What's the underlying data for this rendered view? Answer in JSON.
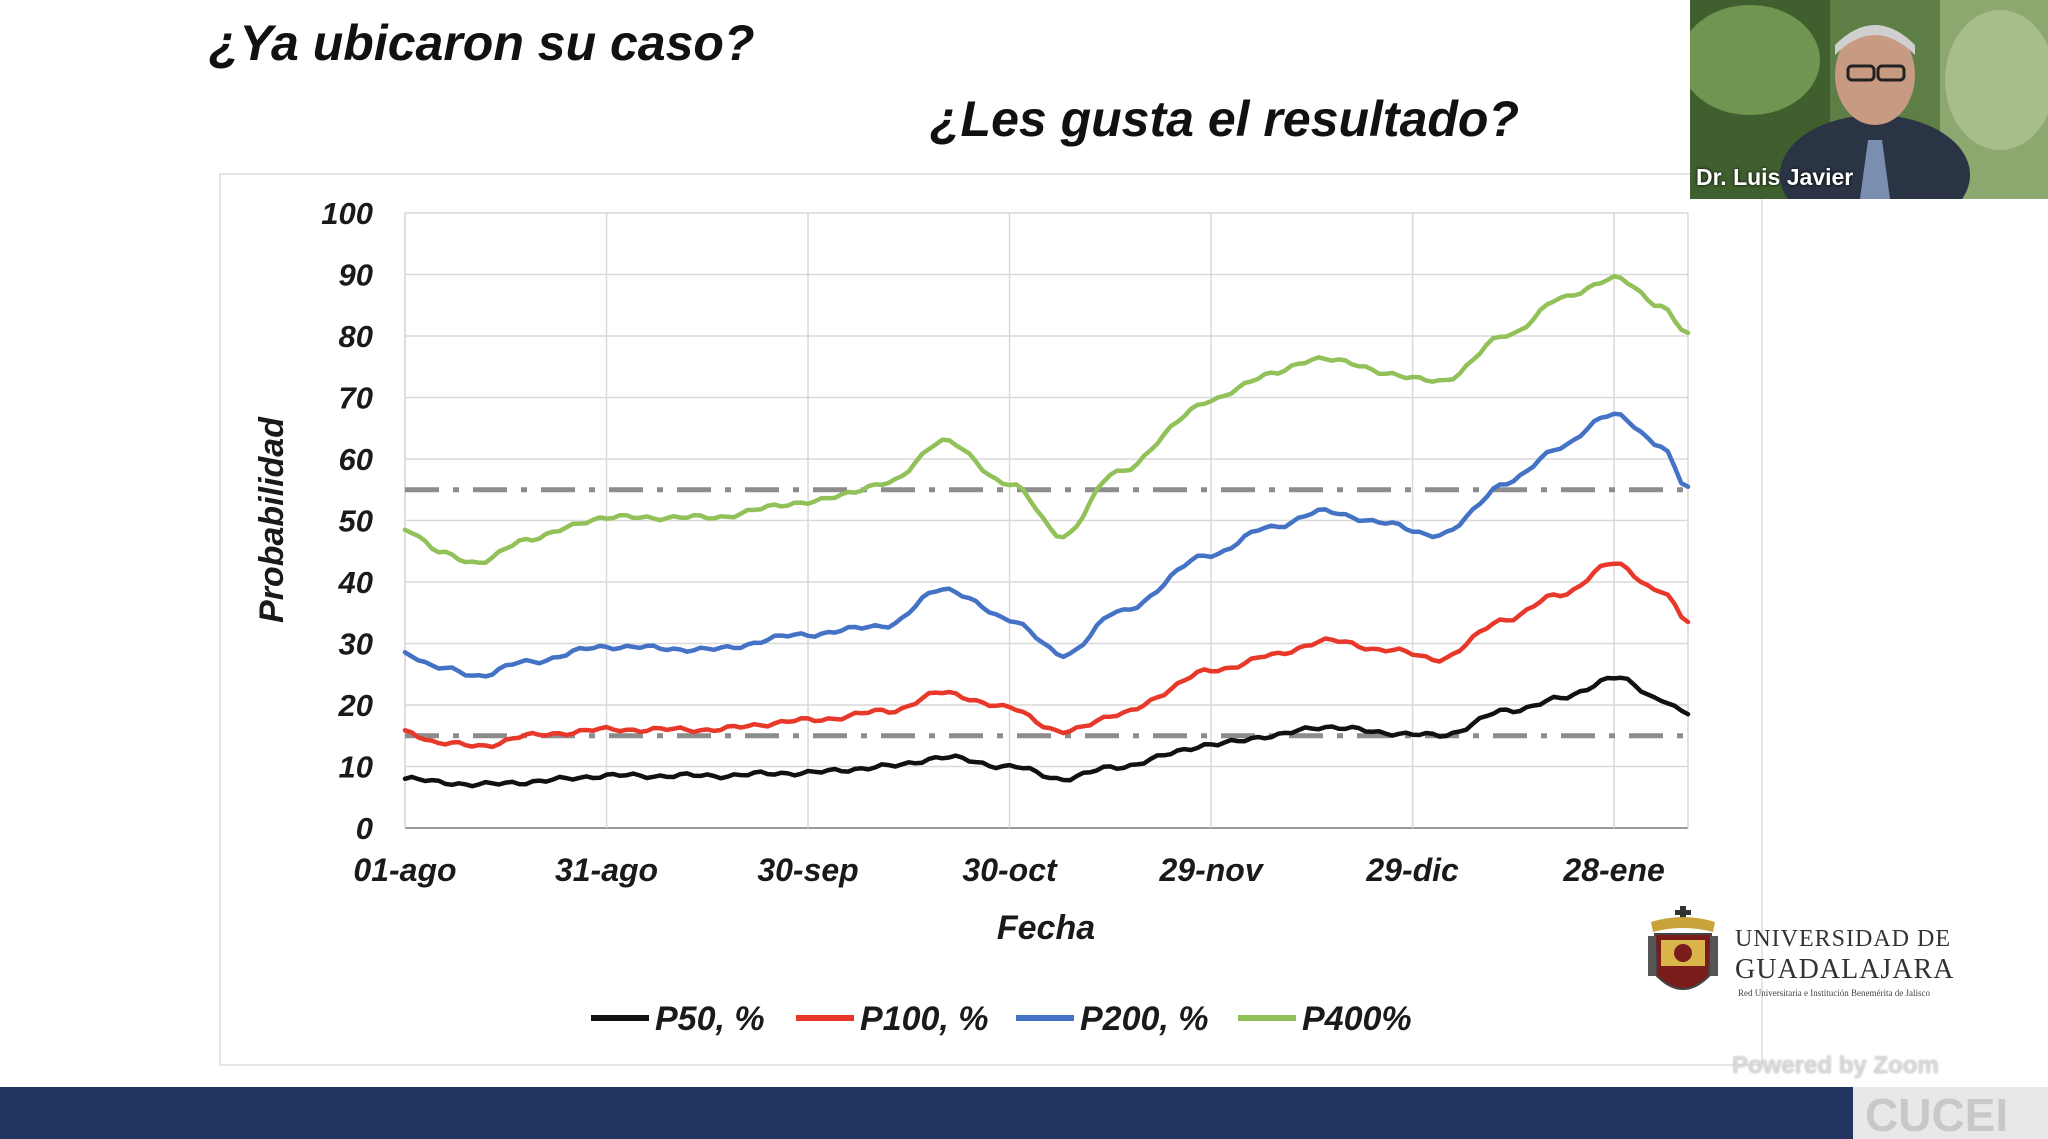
{
  "slide": {
    "question1": "¿Ya ubicaron su caso?",
    "question2": "¿Les gusta el resultado?"
  },
  "webcam": {
    "name": "Dr. Luis Javier"
  },
  "logo": {
    "line1": "UNIVERSIDAD DE",
    "line2": "GUADALAJARA",
    "line3": "Red Universitaria e Institución Benemérita de Jalisco"
  },
  "overlay": {
    "powered_by": "Powered by Zoom"
  },
  "footer": {
    "badge": "CUCEI"
  },
  "colors": {
    "p50": "#111111",
    "p100": "#e8382a",
    "p200": "#4472c4",
    "p400": "#92c15a",
    "reference": "#8c8c8c",
    "footer": "#223560"
  },
  "chart_data": {
    "type": "line",
    "xlabel": "Fecha",
    "ylabel": "Probabilidad",
    "ylim": [
      0,
      100
    ],
    "yticks": [
      0,
      10,
      20,
      30,
      40,
      50,
      60,
      70,
      80,
      90,
      100
    ],
    "xlim": [
      "01-ago",
      "08-feb"
    ],
    "xticks": [
      "01-ago",
      "31-ago",
      "30-sep",
      "30-oct",
      "29-nov",
      "29-dic",
      "28-ene"
    ],
    "grid": true,
    "legend_position": "bottom",
    "reference_lines": [
      55,
      15
    ],
    "series": [
      {
        "name": "P50, %",
        "color_key": "p50",
        "points": [
          [
            "01-ago",
            8
          ],
          [
            "06-ago",
            7.5
          ],
          [
            "12-ago",
            7
          ],
          [
            "19-ago",
            7.5
          ],
          [
            "31-ago",
            8.5
          ],
          [
            "15-sep",
            8.5
          ],
          [
            "30-sep",
            9
          ],
          [
            "12-oct",
            10
          ],
          [
            "20-oct",
            11.5
          ],
          [
            "30-oct",
            10
          ],
          [
            "07-nov",
            8
          ],
          [
            "15-nov",
            10
          ],
          [
            "29-nov",
            13.5
          ],
          [
            "08-dic",
            15
          ],
          [
            "16-dic",
            16.5
          ],
          [
            "25-dic",
            15.5
          ],
          [
            "02-ene",
            15
          ],
          [
            "12-ene",
            19
          ],
          [
            "20-ene",
            21
          ],
          [
            "28-ene",
            24.5
          ],
          [
            "04-feb",
            21
          ],
          [
            "08-feb",
            18.5
          ]
        ]
      },
      {
        "name": "P100, %",
        "color_key": "p100",
        "points": [
          [
            "01-ago",
            15.5
          ],
          [
            "06-ago",
            14
          ],
          [
            "12-ago",
            13.2
          ],
          [
            "19-ago",
            15
          ],
          [
            "31-ago",
            16
          ],
          [
            "15-sep",
            16
          ],
          [
            "30-sep",
            17.5
          ],
          [
            "12-oct",
            19
          ],
          [
            "20-oct",
            22
          ],
          [
            "30-oct",
            19.5
          ],
          [
            "07-nov",
            15.5
          ],
          [
            "15-nov",
            18.5
          ],
          [
            "29-nov",
            25.5
          ],
          [
            "08-dic",
            28
          ],
          [
            "16-dic",
            30.5
          ],
          [
            "25-dic",
            29
          ],
          [
            "02-ene",
            27.5
          ],
          [
            "12-ene",
            34
          ],
          [
            "20-ene",
            38
          ],
          [
            "28-ene",
            43
          ],
          [
            "04-feb",
            38.5
          ],
          [
            "08-feb",
            33.5
          ]
        ]
      },
      {
        "name": "P200, %",
        "color_key": "p200",
        "points": [
          [
            "01-ago",
            28.5
          ],
          [
            "06-ago",
            26
          ],
          [
            "12-ago",
            24.8
          ],
          [
            "19-ago",
            27
          ],
          [
            "31-ago",
            29.5
          ],
          [
            "15-sep",
            29
          ],
          [
            "30-sep",
            31.5
          ],
          [
            "12-oct",
            33
          ],
          [
            "20-oct",
            39
          ],
          [
            "30-oct",
            34
          ],
          [
            "07-nov",
            28
          ],
          [
            "15-nov",
            35
          ],
          [
            "29-nov",
            44.5
          ],
          [
            "08-dic",
            49
          ],
          [
            "16-dic",
            51.5
          ],
          [
            "25-dic",
            49.5
          ],
          [
            "02-ene",
            47.5
          ],
          [
            "12-ene",
            56
          ],
          [
            "20-ene",
            62
          ],
          [
            "28-ene",
            67.5
          ],
          [
            "04-feb",
            62
          ],
          [
            "08-feb",
            55.5
          ]
        ]
      },
      {
        "name": "P400%",
        "color_key": "p400",
        "points": [
          [
            "01-ago",
            48.5
          ],
          [
            "06-ago",
            45
          ],
          [
            "12-ago",
            43
          ],
          [
            "19-ago",
            47
          ],
          [
            "31-ago",
            50.5
          ],
          [
            "15-sep",
            50.5
          ],
          [
            "30-sep",
            53
          ],
          [
            "12-oct",
            56
          ],
          [
            "20-oct",
            63
          ],
          [
            "30-oct",
            56
          ],
          [
            "07-nov",
            47.5
          ],
          [
            "15-nov",
            58
          ],
          [
            "29-nov",
            69.5
          ],
          [
            "08-dic",
            74
          ],
          [
            "16-dic",
            76.5
          ],
          [
            "25-dic",
            74
          ],
          [
            "02-ene",
            72.5
          ],
          [
            "12-ene",
            80
          ],
          [
            "20-ene",
            86
          ],
          [
            "28-ene",
            89.5
          ],
          [
            "04-feb",
            85
          ],
          [
            "08-feb",
            80.5
          ]
        ]
      }
    ]
  }
}
